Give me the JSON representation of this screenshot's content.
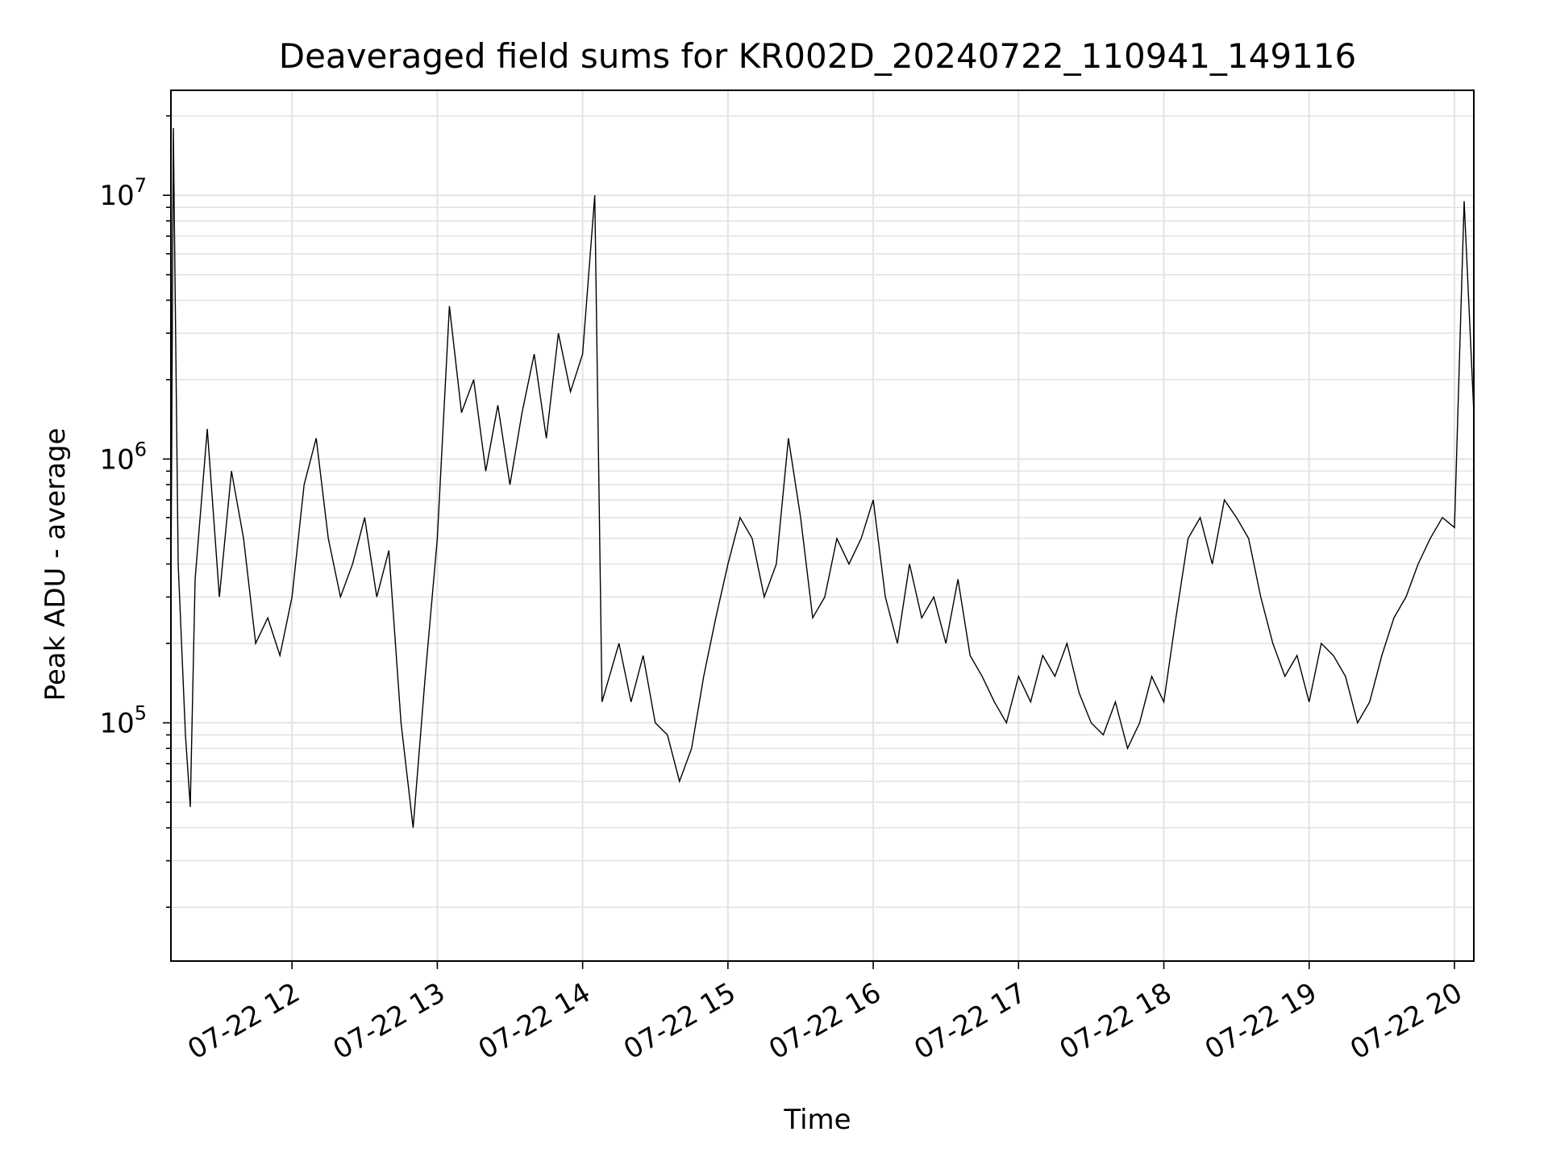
{
  "chart_data": {
    "type": "line",
    "title": "Deaveraged field sums for KR002D_20240722_110941_149116",
    "xlabel": "Time",
    "ylabel": "Peak ADU - average",
    "yscale": "log",
    "ylim": [
      12500,
      25000000
    ],
    "xlim": [
      "2024-07-22 11:10",
      "2024-07-22 20:08"
    ],
    "x_ticks": [
      {
        "value": "2024-07-22 12:00",
        "label": "07-22 12"
      },
      {
        "value": "2024-07-22 13:00",
        "label": "07-22 13"
      },
      {
        "value": "2024-07-22 14:00",
        "label": "07-22 14"
      },
      {
        "value": "2024-07-22 15:00",
        "label": "07-22 15"
      },
      {
        "value": "2024-07-22 16:00",
        "label": "07-22 16"
      },
      {
        "value": "2024-07-22 17:00",
        "label": "07-22 17"
      },
      {
        "value": "2024-07-22 18:00",
        "label": "07-22 18"
      },
      {
        "value": "2024-07-22 19:00",
        "label": "07-22 19"
      },
      {
        "value": "2024-07-22 20:00",
        "label": "07-22 20"
      }
    ],
    "y_ticks": [
      {
        "value": 100000,
        "base": "10",
        "exp": "5"
      },
      {
        "value": 1000000,
        "base": "10",
        "exp": "6"
      },
      {
        "value": 10000000,
        "base": "10",
        "exp": "7"
      }
    ],
    "grid": true,
    "line_color": "#000000",
    "series": [
      {
        "points": [
          [
            "2024-07-22 11:10",
            300000
          ],
          [
            "2024-07-22 11:11",
            18000000
          ],
          [
            "2024-07-22 11:13",
            400000
          ],
          [
            "2024-07-22 11:16",
            90000
          ],
          [
            "2024-07-22 11:18",
            48000
          ],
          [
            "2024-07-22 11:20",
            350000
          ],
          [
            "2024-07-22 11:25",
            1300000
          ],
          [
            "2024-07-22 11:30",
            300000
          ],
          [
            "2024-07-22 11:35",
            900000
          ],
          [
            "2024-07-22 11:40",
            500000
          ],
          [
            "2024-07-22 11:45",
            200000
          ],
          [
            "2024-07-22 11:50",
            250000
          ],
          [
            "2024-07-22 11:55",
            180000
          ],
          [
            "2024-07-22 12:00",
            300000
          ],
          [
            "2024-07-22 12:05",
            800000
          ],
          [
            "2024-07-22 12:10",
            1200000
          ],
          [
            "2024-07-22 12:15",
            500000
          ],
          [
            "2024-07-22 12:20",
            300000
          ],
          [
            "2024-07-22 12:25",
            400000
          ],
          [
            "2024-07-22 12:30",
            600000
          ],
          [
            "2024-07-22 12:35",
            300000
          ],
          [
            "2024-07-22 12:40",
            450000
          ],
          [
            "2024-07-22 12:45",
            100000
          ],
          [
            "2024-07-22 12:50",
            40000
          ],
          [
            "2024-07-22 12:55",
            150000
          ],
          [
            "2024-07-22 13:00",
            500000
          ],
          [
            "2024-07-22 13:05",
            3800000
          ],
          [
            "2024-07-22 13:10",
            1500000
          ],
          [
            "2024-07-22 13:15",
            2000000
          ],
          [
            "2024-07-22 13:20",
            900000
          ],
          [
            "2024-07-22 13:25",
            1600000
          ],
          [
            "2024-07-22 13:30",
            800000
          ],
          [
            "2024-07-22 13:35",
            1500000
          ],
          [
            "2024-07-22 13:40",
            2500000
          ],
          [
            "2024-07-22 13:45",
            1200000
          ],
          [
            "2024-07-22 13:50",
            3000000
          ],
          [
            "2024-07-22 13:55",
            1800000
          ],
          [
            "2024-07-22 14:00",
            2500000
          ],
          [
            "2024-07-22 14:05",
            10000000
          ],
          [
            "2024-07-22 14:08",
            120000
          ],
          [
            "2024-07-22 14:15",
            200000
          ],
          [
            "2024-07-22 14:20",
            120000
          ],
          [
            "2024-07-22 14:25",
            180000
          ],
          [
            "2024-07-22 14:30",
            100000
          ],
          [
            "2024-07-22 14:35",
            90000
          ],
          [
            "2024-07-22 14:40",
            60000
          ],
          [
            "2024-07-22 14:45",
            80000
          ],
          [
            "2024-07-22 14:50",
            150000
          ],
          [
            "2024-07-22 14:55",
            250000
          ],
          [
            "2024-07-22 15:00",
            400000
          ],
          [
            "2024-07-22 15:05",
            600000
          ],
          [
            "2024-07-22 15:10",
            500000
          ],
          [
            "2024-07-22 15:15",
            300000
          ],
          [
            "2024-07-22 15:20",
            400000
          ],
          [
            "2024-07-22 15:25",
            1200000
          ],
          [
            "2024-07-22 15:30",
            600000
          ],
          [
            "2024-07-22 15:35",
            250000
          ],
          [
            "2024-07-22 15:40",
            300000
          ],
          [
            "2024-07-22 15:45",
            500000
          ],
          [
            "2024-07-22 15:50",
            400000
          ],
          [
            "2024-07-22 15:55",
            500000
          ],
          [
            "2024-07-22 16:00",
            700000
          ],
          [
            "2024-07-22 16:05",
            300000
          ],
          [
            "2024-07-22 16:10",
            200000
          ],
          [
            "2024-07-22 16:15",
            400000
          ],
          [
            "2024-07-22 16:20",
            250000
          ],
          [
            "2024-07-22 16:25",
            300000
          ],
          [
            "2024-07-22 16:30",
            200000
          ],
          [
            "2024-07-22 16:35",
            350000
          ],
          [
            "2024-07-22 16:40",
            180000
          ],
          [
            "2024-07-22 16:45",
            150000
          ],
          [
            "2024-07-22 16:50",
            120000
          ],
          [
            "2024-07-22 16:55",
            100000
          ],
          [
            "2024-07-22 17:00",
            150000
          ],
          [
            "2024-07-22 17:05",
            120000
          ],
          [
            "2024-07-22 17:10",
            180000
          ],
          [
            "2024-07-22 17:15",
            150000
          ],
          [
            "2024-07-22 17:20",
            200000
          ],
          [
            "2024-07-22 17:25",
            130000
          ],
          [
            "2024-07-22 17:30",
            100000
          ],
          [
            "2024-07-22 17:35",
            90000
          ],
          [
            "2024-07-22 17:40",
            120000
          ],
          [
            "2024-07-22 17:45",
            80000
          ],
          [
            "2024-07-22 17:50",
            100000
          ],
          [
            "2024-07-22 17:55",
            150000
          ],
          [
            "2024-07-22 18:00",
            120000
          ],
          [
            "2024-07-22 18:05",
            250000
          ],
          [
            "2024-07-22 18:10",
            500000
          ],
          [
            "2024-07-22 18:15",
            600000
          ],
          [
            "2024-07-22 18:20",
            400000
          ],
          [
            "2024-07-22 18:25",
            700000
          ],
          [
            "2024-07-22 18:30",
            600000
          ],
          [
            "2024-07-22 18:35",
            500000
          ],
          [
            "2024-07-22 18:40",
            300000
          ],
          [
            "2024-07-22 18:45",
            200000
          ],
          [
            "2024-07-22 18:50",
            150000
          ],
          [
            "2024-07-22 18:55",
            180000
          ],
          [
            "2024-07-22 19:00",
            120000
          ],
          [
            "2024-07-22 19:05",
            200000
          ],
          [
            "2024-07-22 19:10",
            180000
          ],
          [
            "2024-07-22 19:15",
            150000
          ],
          [
            "2024-07-22 19:20",
            100000
          ],
          [
            "2024-07-22 19:25",
            120000
          ],
          [
            "2024-07-22 19:30",
            180000
          ],
          [
            "2024-07-22 19:35",
            250000
          ],
          [
            "2024-07-22 19:40",
            300000
          ],
          [
            "2024-07-22 19:45",
            400000
          ],
          [
            "2024-07-22 19:50",
            500000
          ],
          [
            "2024-07-22 19:55",
            600000
          ],
          [
            "2024-07-22 20:00",
            550000
          ],
          [
            "2024-07-22 20:04",
            9500000
          ],
          [
            "2024-07-22 20:08",
            1500000
          ]
        ]
      }
    ]
  }
}
